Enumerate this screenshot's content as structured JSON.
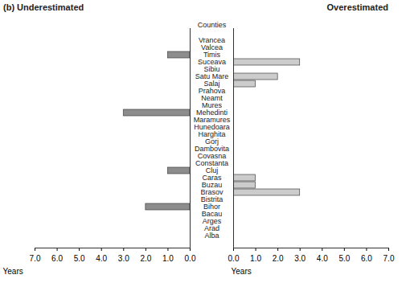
{
  "chart_data": [
    {
      "type": "bar",
      "orientation": "horizontal",
      "title": "(b) Underestimated",
      "xlabel": "Years",
      "ylabel": "Counties",
      "categories": [
        "Vrancea",
        "Valcea",
        "Timis",
        "Suceava",
        "Sibiu",
        "Satu Mare",
        "Salaj",
        "Prahova",
        "Neamt",
        "Mures",
        "Mehedinti",
        "Maramures",
        "Hunedoara",
        "Harghita",
        "Gorj",
        "Dambovita",
        "Covasna",
        "Constanta",
        "Cluj",
        "Caras",
        "Buzau",
        "Brasov",
        "Bistrita",
        "Bihor",
        "Bacau",
        "Arges",
        "Arad",
        "Alba"
      ],
      "values": [
        0,
        0,
        1,
        0,
        0,
        0,
        0,
        0,
        0,
        0,
        3,
        0,
        0,
        0,
        0,
        0,
        0,
        0,
        1,
        0,
        0,
        0,
        0,
        2,
        0,
        0,
        0,
        0
      ],
      "color": "#8c8c8c",
      "xlim": [
        7,
        0
      ],
      "xticks": [
        7,
        6,
        5,
        4,
        3,
        2,
        1,
        0
      ]
    },
    {
      "type": "bar",
      "orientation": "horizontal",
      "title": "Overestimated",
      "xlabel": "Years",
      "tick_labels": "x",
      "categories": [
        "Vrancea",
        "Valcea",
        "Timis",
        "Suceava",
        "Sibiu",
        "Satu Mare",
        "Salaj",
        "Prahova",
        "Neamt",
        "Mures",
        "Mehedinti",
        "Maramures",
        "Hunedoara",
        "Harghita",
        "Gorj",
        "Dambovita",
        "Covasna",
        "Constanta",
        "Cluj",
        "Caras",
        "Buzau",
        "Brasov",
        "Bistrita",
        "Bihor",
        "Bacau",
        "Arges",
        "Arad",
        "Alba"
      ],
      "values": [
        0,
        0,
        0,
        3,
        0,
        2,
        1,
        0,
        0,
        0,
        0,
        0,
        0,
        0,
        0,
        0,
        0,
        0,
        0,
        1,
        1,
        3,
        0,
        0,
        0,
        0,
        0,
        0
      ],
      "color": "#cccccc",
      "xlim": [
        0,
        7
      ],
      "xticks": [
        0,
        1,
        2,
        3,
        4,
        5,
        6,
        7
      ]
    }
  ]
}
